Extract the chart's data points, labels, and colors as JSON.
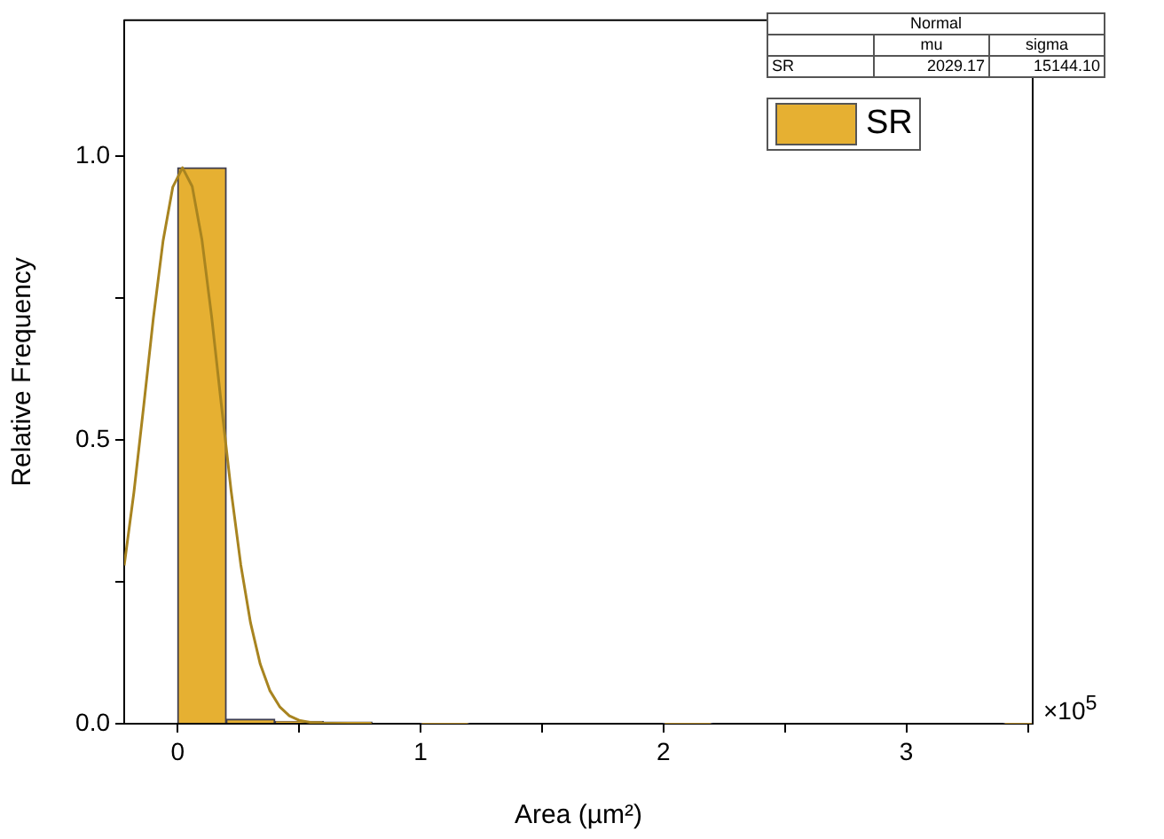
{
  "chart_data": {
    "type": "histogram",
    "xlabel": "Area (µm²)",
    "ylabel": "Relative Frequency",
    "bins": [
      0,
      0.2,
      0.4,
      0.6,
      0.8,
      1.0,
      1.2,
      1.4,
      1.6,
      1.8,
      2.0,
      2.2,
      2.4,
      2.6,
      2.8,
      3.0,
      3.2,
      3.4,
      3.6
    ],
    "series": [
      {
        "name": "SR",
        "color": "#e6b032",
        "values": [
          0.98,
          0.008,
          0.004,
          0.003,
          0,
          0.001,
          0,
          0,
          0,
          0,
          0.001,
          0,
          0,
          0,
          0,
          0,
          0,
          0.001
        ]
      },
      {
        "type": "line",
        "color": "#a88420",
        "x": [
          -0.22,
          -0.18,
          -0.14,
          -0.1,
          -0.06,
          -0.02,
          0.02,
          0.06,
          0.1,
          0.14,
          0.18,
          0.22,
          0.26,
          0.3,
          0.34,
          0.38,
          0.42,
          0.46,
          0.5,
          0.55,
          0.6,
          0.7,
          0.8
        ],
        "values": [
          0.279,
          0.408,
          0.559,
          0.715,
          0.851,
          0.946,
          0.98,
          0.947,
          0.853,
          0.717,
          0.562,
          0.411,
          0.28,
          0.178,
          0.105,
          0.058,
          0.03,
          0.014,
          0.006,
          0.002,
          0.001,
          0,
          0
        ]
      }
    ],
    "xlim": [
      -0.22,
      3.52
    ],
    "xticks": [
      0,
      {
        "value": 0.5,
        "label": null
      },
      1,
      {
        "value": 1.5,
        "label": null
      },
      2,
      {
        "value": 2.5,
        "label": null
      },
      3,
      {
        "value": 3.5,
        "label": null
      }
    ],
    "ylim": [
      0,
      1.24
    ],
    "yticks": [
      {
        "value": 0,
        "label": "0.0"
      },
      {
        "value": 0.25,
        "label": null
      },
      {
        "value": 0.5,
        "label": "0.5"
      },
      {
        "value": 0.75,
        "label": null
      },
      {
        "value": 1,
        "label": "1.0"
      }
    ],
    "grid": false,
    "legend": "top right",
    "marker": "none",
    "annotations": [
      "×10$^{5}$",
      "Normal",
      "mu",
      "sigma",
      "SR",
      "2029.17",
      "15144.10"
    ]
  }
}
